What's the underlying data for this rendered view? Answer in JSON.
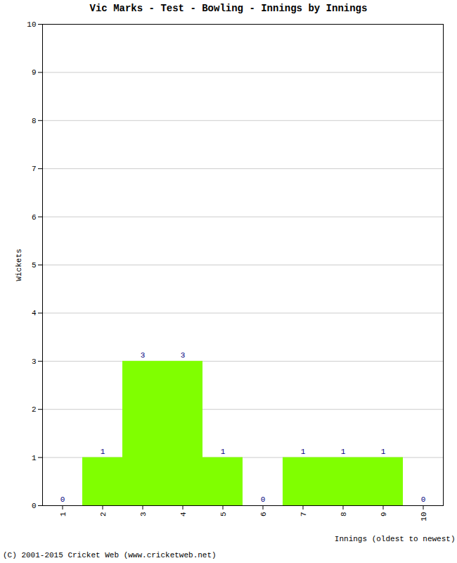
{
  "chart_data": {
    "type": "bar",
    "title": "Vic Marks - Test - Bowling - Innings by Innings",
    "x_label": "Innings (oldest to newest)",
    "y_label": "Wickets",
    "caption": "(C) 2001-2015 Cricket Web (www.cricketweb.net)",
    "categories": [
      "1",
      "2",
      "3",
      "4",
      "5",
      "6",
      "7",
      "8",
      "9",
      "10"
    ],
    "values": [
      0,
      1,
      3,
      3,
      1,
      0,
      1,
      1,
      1,
      0
    ],
    "color": "#80ff00",
    "ylim": [
      0,
      10
    ],
    "yticks": [
      0,
      1,
      2,
      3,
      4,
      5,
      6,
      7,
      8,
      9,
      10
    ],
    "grid": true,
    "data_labels": true
  }
}
